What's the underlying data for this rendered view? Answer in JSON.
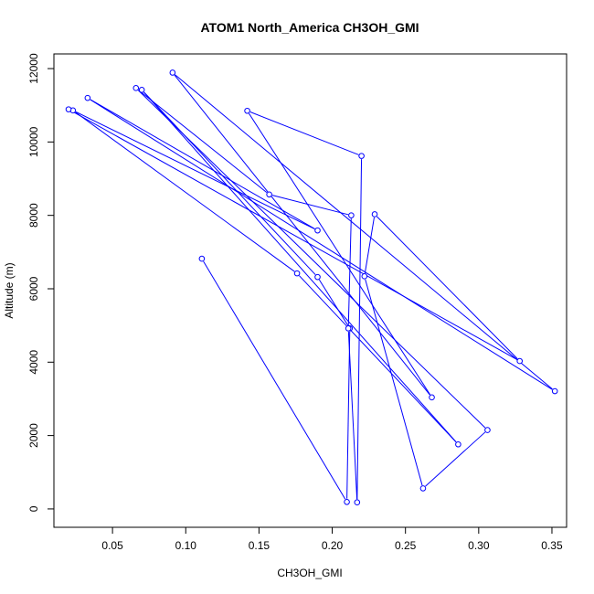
{
  "chart_data": {
    "type": "line",
    "title": "ATOM1 North_America CH3OH_GMI",
    "xlabel": "CH3OH_GMI",
    "ylabel": "Altitude (m)",
    "xlim": [
      0.01,
      0.36
    ],
    "ylim": [
      -500,
      12400
    ],
    "x_ticks": [
      0.05,
      0.1,
      0.15,
      0.2,
      0.25,
      0.3,
      0.35
    ],
    "x_tick_labels": [
      "0.05",
      "0.10",
      "0.15",
      "0.20",
      "0.25",
      "0.30",
      "0.35"
    ],
    "y_ticks": [
      0,
      2000,
      4000,
      6000,
      8000,
      10000,
      12000
    ],
    "y_tick_labels": [
      "0",
      "2000",
      "4000",
      "6000",
      "8000",
      "10000",
      "12000"
    ],
    "grid": false,
    "color": "#0000ff",
    "marker": "open-circle",
    "series": [
      {
        "x": [
          0.111,
          0.21,
          0.212,
          0.19,
          0.07,
          0.286,
          0.176,
          0.023,
          0.19,
          0.033,
          0.352,
          0.091,
          0.268,
          0.142,
          0.22,
          0.217,
          0.211,
          0.213,
          0.157,
          0.066,
          0.306,
          0.262,
          0.222,
          0.229,
          0.328,
          0.02
        ],
        "y": [
          6820,
          190,
          4920,
          6320,
          11420,
          1760,
          6420,
          10860,
          7590,
          11200,
          3210,
          11890,
          3040,
          10850,
          9620,
          180,
          4920,
          8000,
          8570,
          11470,
          2150,
          560,
          6340,
          8030,
          4030,
          10890
        ]
      }
    ]
  }
}
